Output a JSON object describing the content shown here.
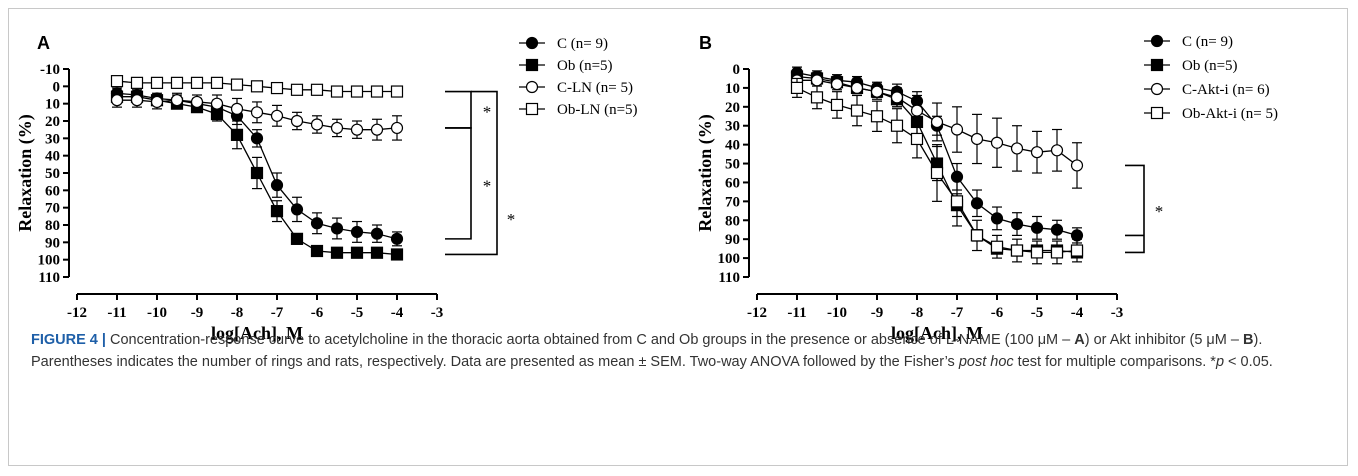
{
  "chart_data": [
    {
      "panel": "A",
      "type": "scatter",
      "xlabel": "log[Ach], M",
      "ylabel": "Relaxation (%)",
      "xlim": [
        -12,
        -3
      ],
      "ylim": [
        -10,
        110
      ],
      "y_inverted": true,
      "xticks": [
        -12,
        -11,
        -10,
        -9,
        -8,
        -7,
        -6,
        -5,
        -4,
        -3
      ],
      "yticks": [
        -10,
        0,
        10,
        20,
        30,
        40,
        50,
        60,
        70,
        80,
        90,
        100,
        110
      ],
      "x": [
        -11,
        -10.5,
        -10,
        -9.5,
        -9,
        -8.5,
        -8,
        -7.5,
        -7,
        -6.5,
        -6,
        -5.5,
        -5,
        -4.5,
        -4
      ],
      "series": [
        {
          "name": "C (n= 9)",
          "marker": "circle-filled",
          "values": [
            4,
            5,
            7,
            8,
            10,
            12,
            17,
            30,
            57,
            71,
            79,
            82,
            84,
            85,
            88
          ],
          "err": [
            3,
            3,
            3,
            3,
            3,
            4,
            5,
            5,
            7,
            7,
            6,
            6,
            6,
            5,
            4
          ]
        },
        {
          "name": "Ob (n=5)",
          "marker": "square-filled",
          "values": [
            6,
            6,
            8,
            10,
            12,
            16,
            28,
            50,
            72,
            88,
            95,
            96,
            96,
            96,
            97
          ],
          "err": [
            3,
            3,
            3,
            3,
            3,
            4,
            8,
            9,
            6,
            3,
            2,
            2,
            2,
            2,
            2
          ]
        },
        {
          "name": "C-LN (n= 5)",
          "marker": "circle-open",
          "values": [
            8,
            8,
            9,
            8,
            9,
            10,
            13,
            15,
            17,
            20,
            22,
            24,
            25,
            25,
            24
          ],
          "err": [
            4,
            4,
            4,
            4,
            4,
            5,
            6,
            6,
            6,
            5,
            5,
            5,
            5,
            6,
            7
          ]
        },
        {
          "name": "Ob-LN (n=5)",
          "marker": "square-open",
          "values": [
            -3,
            -2,
            -2,
            -2,
            -2,
            -2,
            -1,
            0,
            1,
            2,
            2,
            3,
            3,
            3,
            3
          ],
          "err": [
            1,
            1,
            1,
            1,
            1,
            1,
            1,
            1,
            1,
            1,
            1,
            1,
            1,
            1,
            1
          ]
        }
      ],
      "significance_marks": [
        "*",
        "*",
        "*"
      ],
      "legend": "right"
    },
    {
      "panel": "B",
      "type": "scatter",
      "xlabel": "log[Ach], M",
      "ylabel": "Relaxation (%)",
      "xlim": [
        -12,
        -3
      ],
      "ylim": [
        0,
        110
      ],
      "y_inverted": true,
      "xticks": [
        -12,
        -11,
        -10,
        -9,
        -8,
        -7,
        -6,
        -5,
        -4,
        -3
      ],
      "yticks": [
        0,
        10,
        20,
        30,
        40,
        50,
        60,
        70,
        80,
        90,
        100,
        110
      ],
      "x": [
        -11,
        -10.5,
        -10,
        -9.5,
        -9,
        -8.5,
        -8,
        -7.5,
        -7,
        -6.5,
        -6,
        -5.5,
        -5,
        -4.5,
        -4
      ],
      "series": [
        {
          "name": "C (n= 9)",
          "marker": "circle-filled",
          "values": [
            2,
            4,
            6,
            7,
            10,
            12,
            17,
            30,
            57,
            71,
            79,
            82,
            84,
            85,
            88
          ],
          "err": [
            3,
            3,
            3,
            3,
            3,
            4,
            5,
            5,
            7,
            7,
            6,
            6,
            6,
            5,
            4
          ]
        },
        {
          "name": "Ob (n=5)",
          "marker": "square-filled",
          "values": [
            4,
            5,
            7,
            10,
            12,
            16,
            28,
            50,
            72,
            88,
            95,
            96,
            96,
            96,
            97
          ],
          "err": [
            3,
            3,
            3,
            3,
            3,
            4,
            8,
            9,
            6,
            3,
            2,
            2,
            2,
            2,
            2
          ]
        },
        {
          "name": "C-Akt-i (n= 6)",
          "marker": "circle-open",
          "values": [
            6,
            6,
            8,
            10,
            12,
            15,
            22,
            28,
            32,
            37,
            39,
            42,
            44,
            43,
            51
          ],
          "err": [
            3,
            3,
            3,
            3,
            4,
            5,
            8,
            10,
            12,
            13,
            13,
            12,
            11,
            11,
            12
          ]
        },
        {
          "name": "Ob-Akt-i (n= 5)",
          "marker": "square-open",
          "values": [
            10,
            15,
            19,
            22,
            25,
            30,
            37,
            55,
            70,
            88,
            94,
            96,
            97,
            97,
            96
          ],
          "err": [
            5,
            6,
            7,
            8,
            8,
            9,
            10,
            15,
            13,
            8,
            6,
            6,
            6,
            6,
            6
          ]
        }
      ],
      "significance_marks": [
        "*"
      ],
      "legend": "right"
    }
  ],
  "caption": {
    "label": "FIGURE 4 |",
    "text_1": " Concentration-response curve to acetylcholine in the thoracic aorta obtained from C and Ob groups in the presence or absence of L-NAME (100 μM – ",
    "panel_a": "A",
    "text_2": ") or Akt inhibitor (5 μM – ",
    "panel_b": "B",
    "text_3": "). Parentheses indicates the number of rings and rats, respectively. Data are presented as mean ± SEM. Two-way ANOVA followed by the Fisher’s ",
    "italic_1": "post hoc",
    "text_4": " test for multiple comparisons. *",
    "italic_2": "p",
    "text_5": " < 0.05."
  }
}
